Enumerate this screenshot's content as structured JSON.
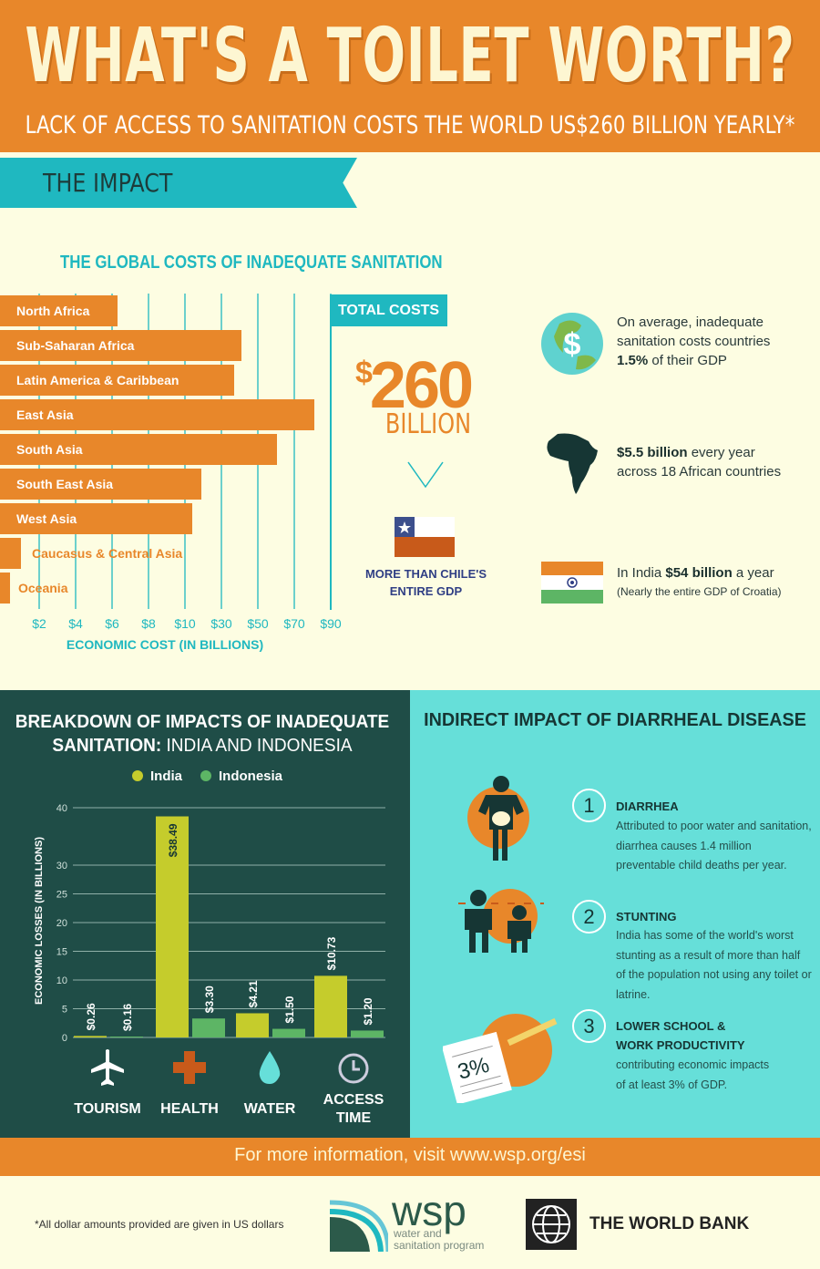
{
  "header": {
    "title": "WHAT'S A TOILET WORTH?",
    "subtitle": "LACK OF ACCESS TO SANITATION COSTS THE WORLD US$260 BILLION YEARLY*"
  },
  "impact_banner": "THE IMPACT",
  "global_costs": {
    "title": "THE GLOBAL COSTS OF INADEQUATE SANITATION"
  },
  "total": {
    "label": "TOTAL COSTS",
    "currency": "$",
    "amount": "260",
    "unit": "BILLION",
    "comparison_line1": "MORE THAN CHILE'S",
    "comparison_line2": "ENTIRE GDP"
  },
  "facts": [
    {
      "icon": "globe-dollar-icon",
      "line1": "On average, inadequate",
      "line2": "sanitation costs countries",
      "bold": "1.5%",
      "rest": " of their GDP"
    },
    {
      "icon": "africa-map-icon",
      "bold": "$5.5 billion",
      "rest": " every year",
      "line2": "across 18 African countries"
    },
    {
      "icon": "india-flag-icon",
      "pre": "In India ",
      "bold": "$54 billion",
      "rest": " a year",
      "note": "(Nearly the entire GDP of Croatia)"
    }
  ],
  "indirect": {
    "title": "INDIRECT IMPACT OF DIARRHEAL DISEASE",
    "items": [
      {
        "number": "1",
        "heading": "DIARRHEA",
        "body": "Attributed to poor water and sanitation, diarrhea causes 1.4 million preventable child deaths per year.",
        "icon": "sick-person-icon"
      },
      {
        "number": "2",
        "heading": "STUNTING",
        "body": "India has some of the world's worst stunting as a result of more than half of the population not using any toilet or latrine.",
        "icon": "stunted-people-icon"
      },
      {
        "number": "3",
        "heading_line1": "LOWER SCHOOL &",
        "heading_line2": "WORK PRODUCTIVITY",
        "body": "contributing economic impacts of at least 3% of GDP.",
        "icon": "paper-pencil-icon",
        "icon_text": "3%"
      }
    ]
  },
  "footer": {
    "info": "For more information, visit www.wsp.org/esi",
    "footnote": "*All dollar amounts provided are given in US dollars",
    "wsp_logo": "wsp",
    "wsp_sub1": "water and",
    "wsp_sub2": "sanitation program",
    "worldbank": "THE WORLD BANK"
  },
  "colors": {
    "orange": "#e8872a",
    "teal": "#1fb8c0",
    "dark_green": "#1f4d47",
    "cyan": "#66dfd9",
    "cream": "#fdfde2",
    "india": "#c5cc2c",
    "indonesia": "#5db565"
  },
  "chart_data": [
    {
      "type": "bar",
      "orientation": "horizontal",
      "title": "THE GLOBAL COSTS OF INADEQUATE SANITATION",
      "xlabel": "ECONOMIC COST (IN BILLIONS)",
      "categories": [
        "North Africa",
        "Sub-Saharan Africa",
        "Latin America & Caribbean",
        "East Asia",
        "South Asia",
        "South East Asia",
        "West Asia",
        "Caucasus & Central Asia",
        "Oceania"
      ],
      "values": [
        6.3,
        41,
        37,
        81,
        60.5,
        19,
        14,
        1,
        0.4
      ],
      "x_ticks": [
        2,
        4,
        6,
        8,
        10,
        30,
        50,
        70,
        90
      ],
      "x_tick_labels": [
        "$2",
        "$4",
        "$6",
        "$8",
        "$10",
        "$30",
        "$50",
        "$70",
        "$90"
      ],
      "x_scale": "piecewise (non-uniform)",
      "grid": true
    },
    {
      "type": "bar",
      "title": "BREAKDOWN OF IMPACTS OF INADEQUATE",
      "title_bold2": "SANITATION:",
      "title_rest": " INDIA AND INDONESIA",
      "ylabel": "ECONOMIC LOSSES (IN BILLIONS)",
      "categories": [
        "TOURISM",
        "HEALTH",
        "WATER",
        "ACCESS TIME"
      ],
      "category_line1": [
        "TOURISM",
        "HEALTH",
        "WATER",
        "ACCESS"
      ],
      "category_line2": [
        "",
        "",
        "",
        "TIME"
      ],
      "category_icons": [
        "airplane-icon",
        "health-cross-icon",
        "water-drop-icon",
        "clock-icon"
      ],
      "series": [
        {
          "name": "India",
          "values": [
            0.26,
            38.49,
            4.21,
            10.73
          ],
          "labels": [
            "$0.26",
            "$38.49",
            "$4.21",
            "$10.73"
          ]
        },
        {
          "name": "Indonesia",
          "values": [
            0.16,
            3.3,
            1.5,
            1.2
          ],
          "labels": [
            "$0.16",
            "$3.30",
            "$1.50",
            "$1.20"
          ]
        }
      ],
      "y_ticks": [
        0,
        5,
        10,
        15,
        20,
        25,
        30,
        40
      ],
      "ylim": [
        0,
        40
      ],
      "grid": true,
      "legend": "top"
    }
  ]
}
